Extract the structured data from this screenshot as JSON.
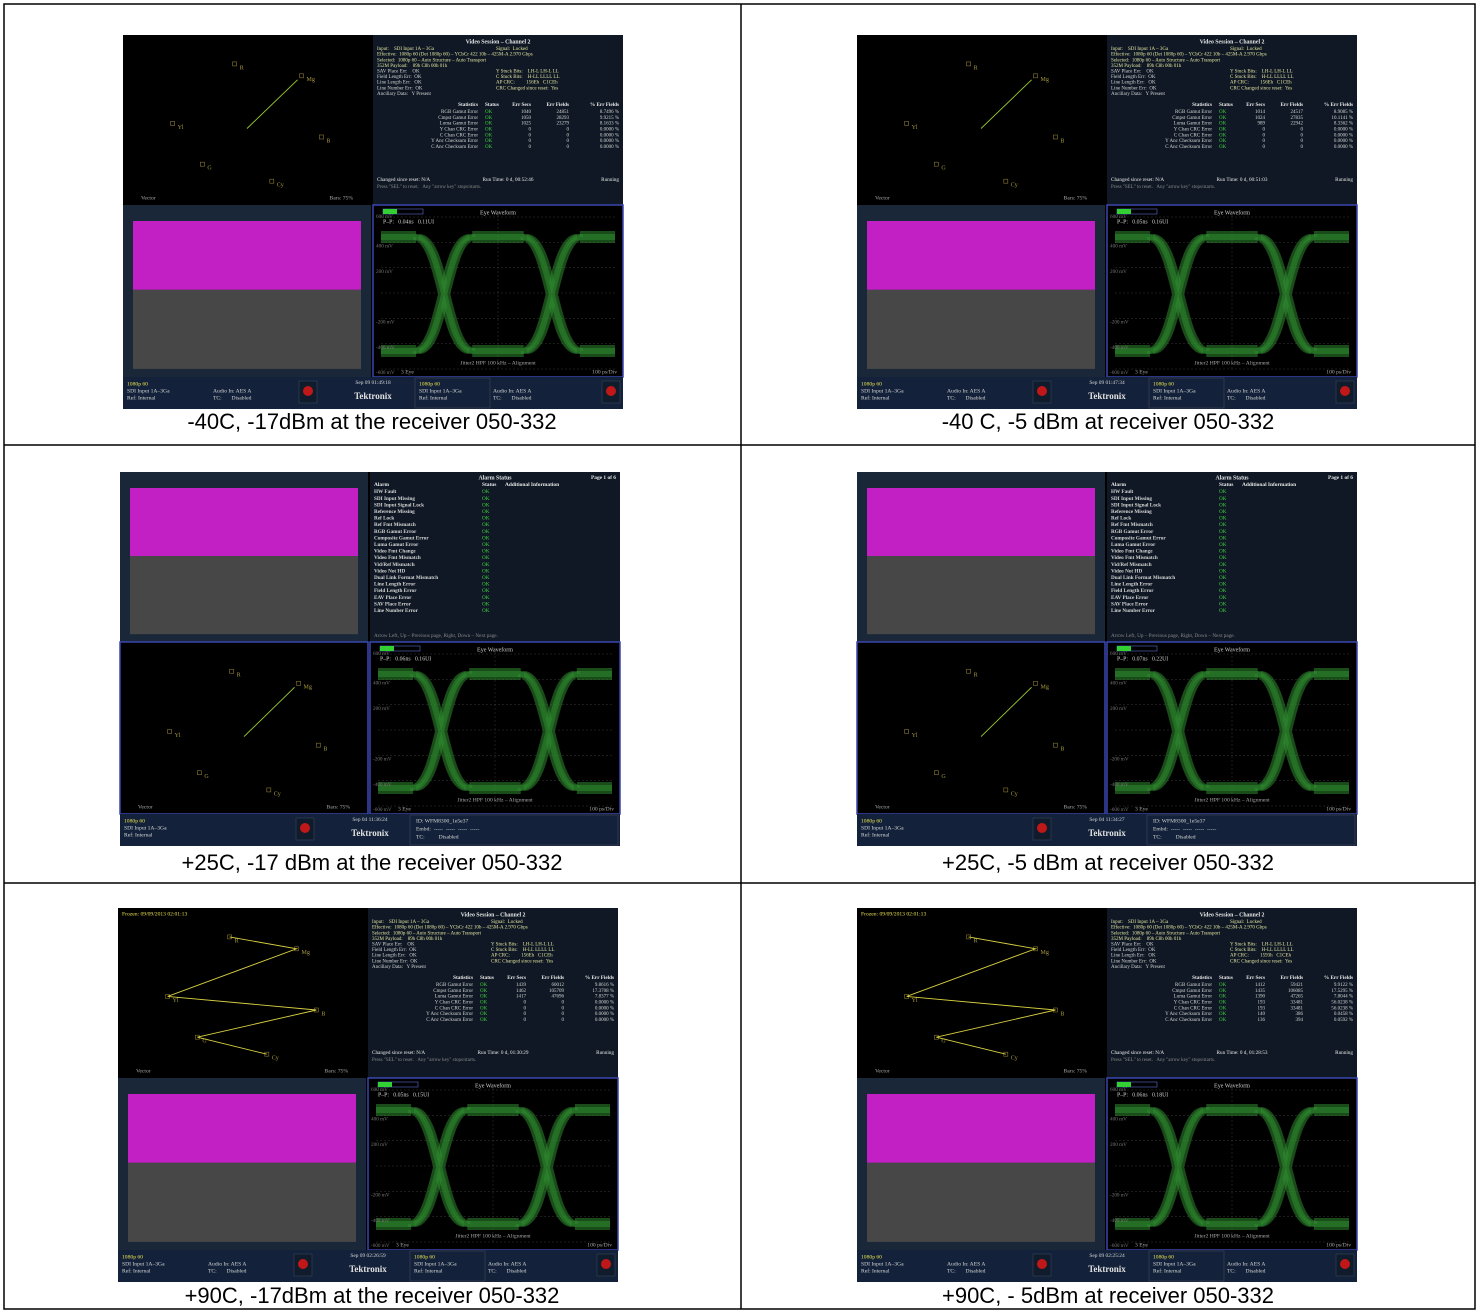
{
  "cells": [
    {
      "layout": "session",
      "caption": "-40C, -17dBm at the receiver 050-332",
      "vector": {
        "labels": [
          "R",
          "Mg",
          "B",
          "Cy",
          "G",
          "Yl"
        ],
        "name": "Vector",
        "bars": "Bars: 75%"
      },
      "session": {
        "title": "Video Session – Channel 2",
        "lines": [
          [
            "Input:    SDI Input 1A – 3Ga",
            "Signal:  Locked"
          ],
          [
            "Effective:  1080p 60 (Det 1080p 60) – YCbCr 422 10b – 425M-A 2.970 Gbps"
          ],
          [
            "Selected:  1080p 60 – Auto Structure – Auto Transport"
          ],
          [
            "352M Payload:    89h C8h 00h 01h"
          ],
          [
            "SAV Place Err:    OK",
            "Y Stuck Bits:    LH-L LH-L LL"
          ],
          [
            "Field Length Err:  OK",
            "C Stuck Bits:    H-LL LLLL LL"
          ],
          [
            "Line Length Err:   OK",
            "AP CRC:         156Eh   C1CEh"
          ],
          [
            "Line Number Err:  OK",
            "CRC Changed since reset:  Yes"
          ],
          [
            "Ancillary Data:   Y Present"
          ]
        ],
        "header": [
          "Statistics",
          "Status",
          "Err Secs",
          "Err Fields",
          "% Err Fields"
        ],
        "rows": [
          [
            "RGB Gamut Error",
            "OK",
            "1040",
            "24851",
            "8.7496 %"
          ],
          [
            "Cmpst Gamut Error",
            "OK",
            "1050",
            "28293",
            "9.9215 %"
          ],
          [
            "Luma Gamut Error",
            "OK",
            "1025",
            "23279",
            "8.1633 %"
          ],
          [
            "Y Chan CRC Error",
            "OK",
            "0",
            "0",
            "0.0000 %"
          ],
          [
            "C Chan CRC Error",
            "OK",
            "0",
            "0",
            "0.0000 %"
          ],
          [
            "Y Anc Checksum Error",
            "OK",
            "0",
            "0",
            "0.0000 %"
          ],
          [
            "C Anc Checksum Error",
            "OK",
            "0",
            "0",
            "0.0000 %"
          ]
        ],
        "footer": [
          "Changed since reset: N/A",
          "Run Time: 0 d, 00:52:46",
          "Running"
        ],
        "hint": "Press \"SEL\" to reset.   Any \"arrow key\" stops/starts."
      },
      "eye": {
        "title": "Eye Waveform",
        "pp": "P–P:   0.04ns   0.11UI",
        "axis": [
          "600 mV",
          "400 mV",
          "200 mV",
          "-200 mV",
          "-400 mV",
          "-600 mV"
        ],
        "filter": "Jitter2 HPF 100 kHz – Alignment",
        "mode": "3 Eye",
        "scale": "100 ps/Div"
      },
      "status": {
        "left": [
          "1080p 60",
          "SDI Input 1A–3Ga",
          "Ref: Internal"
        ],
        "audio": [
          "Audio In: AES A",
          "TC:       Disabled"
        ],
        "date": "Sep 09 01:49:18",
        "brand": "Tektronix",
        "right": [
          "1080p 60",
          "SDI Input 1A–3Ga",
          "Ref: Internal"
        ],
        "audio2": [
          "Audio In: AES A",
          "TC:       Disabled"
        ]
      }
    },
    {
      "layout": "session",
      "caption": "-40 C, -5 dBm at receiver 050-332",
      "vector": {
        "labels": [
          "R",
          "Mg",
          "B",
          "Cy",
          "G",
          "Yl"
        ],
        "name": "Vector",
        "bars": "Bars: 75%"
      },
      "session": {
        "title": "Video Session – Channel 2",
        "lines": [
          [
            "Input:    SDI Input 1A – 3Ga",
            "Signal:  Locked"
          ],
          [
            "Effective:  1080p 60 (Det 1080p 60) – YCbCr 422 10b – 425M-A 2.970 Gbps"
          ],
          [
            "Selected:  1080p 60 – Auto Structure – Auto Transport"
          ],
          [
            "352M Payload:    89h C8h 00h 01h"
          ],
          [
            "SAV Place Err:    OK",
            "Y Stuck Bits:    LH-L LH-L LL"
          ],
          [
            "Field Length Err:  OK",
            "C Stuck Bits:    H-LL LLLL LL"
          ],
          [
            "Line Length Err:   OK",
            "AP CRC:         156Eh   C1CEh"
          ],
          [
            "Line Number Err:  OK",
            "CRC Changed since reset:  Yes"
          ],
          [
            "Ancillary Data:   Y Present"
          ]
        ],
        "header": [
          "Statistics",
          "Status",
          "Err Secs",
          "Err Fields",
          "% Err Fields"
        ],
        "rows": [
          [
            "RGB Gamut Error",
            "OK",
            "1014",
            "24517",
            "8.9085 %"
          ],
          [
            "Cmpst Gamut Error",
            "OK",
            "1024",
            "27835",
            "10.1141 %"
          ],
          [
            "Luma Gamut Error",
            "OK",
            "989",
            "22942",
            "8.3362 %"
          ],
          [
            "Y Chan CRC Error",
            "OK",
            "0",
            "0",
            "0.0000 %"
          ],
          [
            "C Chan CRC Error",
            "OK",
            "0",
            "0",
            "0.0000 %"
          ],
          [
            "Y Anc Checksum Error",
            "OK",
            "0",
            "0",
            "0.0000 %"
          ],
          [
            "C Anc Checksum Error",
            "OK",
            "0",
            "0",
            "0.0000 %"
          ]
        ],
        "footer": [
          "Changed since reset: N/A",
          "Run Time: 0 d, 00:51:03",
          "Running"
        ],
        "hint": "Press \"SEL\" to reset.   Any \"arrow key\" stops/starts."
      },
      "eye": {
        "title": "Eye Waveform",
        "pp": "P–P:   0.05ns   0.16UI",
        "axis": [
          "600 mV",
          "400 mV",
          "200 mV",
          "-200 mV",
          "-400 mV",
          "-600 mV"
        ],
        "filter": "Jitter2 HPF 100 kHz – Alignment",
        "mode": "3 Eye",
        "scale": "100 ps/Div"
      },
      "status": {
        "left": [
          "1080p 60",
          "SDI Input 1A–3Ga",
          "Ref: Internal"
        ],
        "audio": [
          "Audio In: AES A",
          "TC:       Disabled"
        ],
        "date": "Sep 09 01:47:34",
        "brand": "Tektronix",
        "right": [
          "1080p 60",
          "SDI Input 1A–3Ga",
          "Ref: Internal"
        ],
        "audio2": [
          "Audio In: AES A",
          "TC:       Disabled"
        ]
      }
    },
    {
      "layout": "alarm",
      "caption": "+25C, -17 dBm at the receiver 050-332",
      "vector": {
        "labels": [
          "R",
          "Mg",
          "B",
          "Cy",
          "G",
          "Yl"
        ],
        "name": "Vector",
        "bars": "Bars: 75%"
      },
      "alarm": {
        "title": "Alarm Status",
        "page": "Page 1 of 6",
        "header": [
          "Alarm",
          "Status",
          "Additional Information"
        ],
        "rows": [
          [
            "HW Fault",
            "OK"
          ],
          [
            "SDI Input Missing",
            "OK"
          ],
          [
            "SDI Input Signal Lock",
            "OK"
          ],
          [
            "Reference Missing",
            "OK"
          ],
          [
            "Ref Lock",
            "OK"
          ],
          [
            "Ref Fmt Mismatch",
            "OK"
          ],
          [
            "RGB Gamut Error",
            "OK"
          ],
          [
            "Composite Gamut Error",
            "OK"
          ],
          [
            "Luma Gamut Error",
            "OK"
          ],
          [
            "Video Fmt Change",
            "OK"
          ],
          [
            "Video Fmt Mismatch",
            "OK"
          ],
          [
            "Vid/Ref Mismatch",
            "OK"
          ],
          [
            "Video Not HD",
            "OK"
          ],
          [
            "Dual Link Format Mismatch",
            "OK"
          ],
          [
            "Line Length Error",
            "OK"
          ],
          [
            "Field Length Error",
            "OK"
          ],
          [
            "EAV Place Error",
            "OK"
          ],
          [
            "SAV Place Error",
            "OK"
          ],
          [
            "Line Number Error",
            "OK"
          ]
        ],
        "footer": "Arrow Left, Up – Previous page, Right, Down – Next page."
      },
      "eye": {
        "title": "Eye Waveform",
        "pp": "P–P:   0.06ns   0.16UI",
        "axis": [
          "600 mV",
          "400 mV",
          "200 mV",
          "-200 mV",
          "-400 mV",
          "-600 mV"
        ],
        "filter": "Jitter2 HPF 100 kHz – Alignment",
        "mode": "3 Eye",
        "scale": "100 ps/Div"
      },
      "status": {
        "left": [
          "1080p 60",
          "SDI Input 1A–3Ga",
          "Ref: Internal"
        ],
        "date": "Sep 04 11:36:24",
        "brand": "Tektronix",
        "id": [
          "ID: WFM8300_1e5e37",
          "Embd:  -----  -----  -----  -----",
          "TC:          Disabled"
        ]
      }
    },
    {
      "layout": "alarm",
      "caption": "+25C, -5 dBm at receiver 050-332",
      "vector": {
        "labels": [
          "R",
          "Mg",
          "B",
          "Cy",
          "G",
          "Yl"
        ],
        "name": "Vector",
        "bars": "Bars: 75%"
      },
      "alarm": {
        "title": "Alarm Status",
        "page": "Page 1 of 6",
        "header": [
          "Alarm",
          "Status",
          "Additional Information"
        ],
        "rows": [
          [
            "HW Fault",
            "OK"
          ],
          [
            "SDI Input Missing",
            "OK"
          ],
          [
            "SDI Input Signal Lock",
            "OK"
          ],
          [
            "Reference Missing",
            "OK"
          ],
          [
            "Ref Lock",
            "OK"
          ],
          [
            "Ref Fmt Mismatch",
            "OK"
          ],
          [
            "RGB Gamut Error",
            "OK"
          ],
          [
            "Composite Gamut Error",
            "OK"
          ],
          [
            "Luma Gamut Error",
            "OK"
          ],
          [
            "Video Fmt Change",
            "OK"
          ],
          [
            "Video Fmt Mismatch",
            "OK"
          ],
          [
            "Vid/Ref Mismatch",
            "OK"
          ],
          [
            "Video Not HD",
            "OK"
          ],
          [
            "Dual Link Format Mismatch",
            "OK"
          ],
          [
            "Line Length Error",
            "OK"
          ],
          [
            "Field Length Error",
            "OK"
          ],
          [
            "EAV Place Error",
            "OK"
          ],
          [
            "SAV Place Error",
            "OK"
          ],
          [
            "Line Number Error",
            "OK"
          ]
        ],
        "footer": "Arrow Left, Up – Previous page, Right, Down – Next page."
      },
      "eye": {
        "title": "Eye Waveform",
        "pp": "P–P:   0.07ns   0.22UI",
        "axis": [
          "600 mV",
          "400 mV",
          "200 mV",
          "-200 mV",
          "-400 mV",
          "-600 mV"
        ],
        "filter": "Jitter2 HPF 100 kHz – Alignment",
        "mode": "3 Eye",
        "scale": "100 ps/Div"
      },
      "status": {
        "left": [
          "1080p 60",
          "SDI Input 1A–3Ga",
          "Ref: Internal"
        ],
        "date": "Sep 04 11:34:27",
        "brand": "Tektronix",
        "id": [
          "ID: WFM8300_1e5e37",
          "Embd:  -----  -----  -----  -----",
          "TC:          Disabled"
        ]
      }
    },
    {
      "layout": "session",
      "caption": "+90C, -17dBm at the receiver 050-332",
      "frozen": "Frozen: 09/09/2013 02:01:13",
      "vector": {
        "labels": [
          "R",
          "Mg",
          "B",
          "Cy",
          "G",
          "Yl"
        ],
        "name": "Vector",
        "bars": "Bars: 75%"
      },
      "session": {
        "title": "Video Session – Channel 2",
        "lines": [
          [
            "Input:    SDI Input 1A – 3Ga",
            "Signal:  Locked"
          ],
          [
            "Effective:  1080p 60 (Det 1080p 60) – YCbCr 422 10b – 425M-A 2.970 Gbps"
          ],
          [
            "Selected:  1080p 60 – Auto Structure – Auto Transport"
          ],
          [
            "352M Payload:    89h C8h 00h 01h"
          ],
          [
            "SAV Place Err:    OK",
            "Y Stuck Bits:    LH-L LH-L LL"
          ],
          [
            "Field Length Err:  OK",
            "C Stuck Bits:    H-LL LLLL LL"
          ],
          [
            "Line Length Err:   OK",
            "AP CRC:         156Eh   C1CEh"
          ],
          [
            "Line Number Err:  OK",
            "CRC Changed since reset:  Yes"
          ],
          [
            "Ancillary Data:   Y Present"
          ]
        ],
        "header": [
          "Statistics",
          "Status",
          "Err Secs",
          "Err Fields",
          "% Err Fields"
        ],
        "rows": [
          [
            "RGB Gamut Error",
            "OK",
            "1439",
            "60012",
            "9.8616 %"
          ],
          [
            "Cmpst Gamut Error",
            "OK",
            "1462",
            "105709",
            "17.3708 %"
          ],
          [
            "Luma Gamut Error",
            "OK",
            "1417",
            "47696",
            "7.8377 %"
          ],
          [
            "Y Chan CRC Error",
            "OK",
            "0",
            "0",
            "0.0000 %"
          ],
          [
            "C Chan CRC Error",
            "OK",
            "0",
            "0",
            "0.0000 %"
          ],
          [
            "Y Anc Checksum Error",
            "OK",
            "0",
            "0",
            "0.0000 %"
          ],
          [
            "C Anc Checksum Error",
            "OK",
            "0",
            "0",
            "0.0000 %"
          ]
        ],
        "footer": [
          "Changed since reset: N/A",
          "Run Time: 0 d, 01:30:29",
          "Running"
        ],
        "hint": "Press \"SEL\" to reset.   Any \"arrow key\" stops/starts."
      },
      "eye": {
        "title": "Eye Waveform",
        "pp": "P–P:   0.05ns   0.15UI",
        "axis": [
          "600 mV",
          "400 mV",
          "200 mV",
          "-200 mV",
          "-400 mV",
          "-600 mV"
        ],
        "filter": "Jitter2 HPF 100 kHz – Alignment",
        "mode": "3 Eye",
        "scale": "100 ps/Div"
      },
      "status": {
        "left": [
          "1080p 60",
          "SDI Input 1A–3Ga",
          "Ref: Internal"
        ],
        "audio": [
          "Audio In: AES A",
          "TC:       Disabled"
        ],
        "date": "Sep 09 02:26:59",
        "brand": "Tektronix",
        "right": [
          "1080p 60",
          "SDI Input 1A–3Ga",
          "Ref: Internal"
        ],
        "audio2": [
          "Audio In: AES A",
          "TC:       Disabled"
        ]
      }
    },
    {
      "layout": "session",
      "caption": "+90C, - 5dBm at receiver 050-332",
      "frozen": "Frozen: 09/09/2013 02:01:13",
      "vector": {
        "labels": [
          "R",
          "Mg",
          "B",
          "Cy",
          "G",
          "Yl"
        ],
        "name": "Vector",
        "bars": "Bars: 75%"
      },
      "session": {
        "title": "Video Session – Channel 2",
        "lines": [
          [
            "Input:    SDI Input 1A – 3Ga",
            "Signal:  Locked"
          ],
          [
            "Effective:  1080p 60 (Det 1080p 60) – YCbCr 422 10b – 425M-A 2.970 Gbps"
          ],
          [
            "Selected:  1080p 60 – Auto Structure – Auto Transport"
          ],
          [
            "352M Payload:    89h C8h 00h 01h"
          ],
          [
            "SAV Place Err:    OK",
            "Y Stuck Bits:    LH-L LH-L LL"
          ],
          [
            "Field Length Err:  OK",
            "C Stuck Bits:    H-LL LLLL LL"
          ],
          [
            "Line Length Err:   OK",
            "AP CRC:         1593h   C1CEh"
          ],
          [
            "Line Number Err:  OK",
            "CRC Changed since reset:  Yes"
          ],
          [
            "Ancillary Data:   Y Present"
          ]
        ],
        "header": [
          "Statistics",
          "Status",
          "Err Secs",
          "Err Fields",
          "% Err Fields"
        ],
        "rows": [
          [
            "RGB Gamut Error",
            "OK",
            "1412",
            "59421",
            "9.9122 %"
          ],
          [
            "Cmpst Gamut Error",
            "OK",
            "1435",
            "106085",
            "17.5295 %"
          ],
          [
            "Luma Gamut Error",
            "OK",
            "1390",
            "47265",
            "7.8044 %"
          ],
          [
            "Y Chan CRC Error",
            "OK",
            "193",
            "33481",
            "56.0238 %"
          ],
          [
            "C Chan CRC Error",
            "OK",
            "193",
            "33481",
            "56.0238 %"
          ],
          [
            "Y Anc Checksum Error",
            "OK",
            "140",
            "386",
            "0.0458 %"
          ],
          [
            "C Anc Checksum Error",
            "OK",
            "136",
            "394",
            "0.0592 %"
          ]
        ],
        "footer": [
          "Changed since reset: N/A",
          "Run Time: 0 d, 01:28:53",
          "Running"
        ],
        "hint": "Press \"SEL\" to reset.   Any \"arrow key\" stops/starts."
      },
      "eye": {
        "title": "Eye Waveform",
        "pp": "P–P:   0.06ns   0.18UI",
        "axis": [
          "600 mV",
          "400 mV",
          "200 mV",
          "-200 mV",
          "-400 mV",
          "-600 mV"
        ],
        "filter": "Jitter2 HPF 100 kHz – Alignment",
        "mode": "3 Eye",
        "scale": "100 ps/Div"
      },
      "status": {
        "left": [
          "1080p 60",
          "SDI Input 1A–3Ga",
          "Ref: Internal"
        ],
        "audio": [
          "Audio In: AES A",
          "TC:       Disabled"
        ],
        "date": "Sep 09 02:25:24",
        "brand": "Tektronix",
        "right": [
          "1080p 60",
          "SDI Input 1A–3Ga",
          "Ref: Internal"
        ],
        "audio2": [
          "Audio In: AES A",
          "TC:       Disabled"
        ]
      }
    }
  ]
}
